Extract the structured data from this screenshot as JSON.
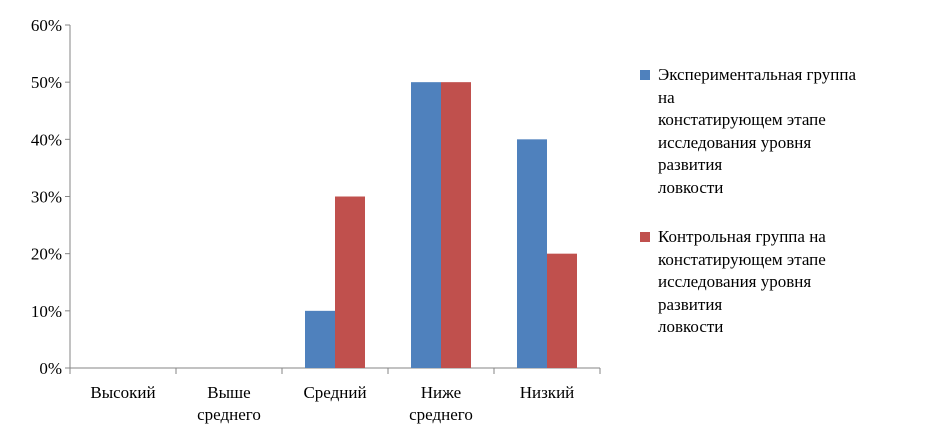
{
  "chart_data": {
    "type": "bar",
    "title": "",
    "xlabel": "",
    "ylabel": "",
    "ylim": [
      0,
      60
    ],
    "y_unit": "%",
    "y_ticks": [
      "0%",
      "10%",
      "20%",
      "30%",
      "40%",
      "50%",
      "60%"
    ],
    "grid": false,
    "legend_position": "right",
    "categories": [
      [
        "Высокий"
      ],
      [
        "Выше",
        "среднего"
      ],
      [
        "Средний"
      ],
      [
        "Ниже",
        "среднего"
      ],
      [
        "Низкий"
      ]
    ],
    "series": [
      {
        "name": "Экспериментальная группа на констатирующем этапе исследования уровня развития ловкости",
        "name_lines": [
          "Экспериментальная группа",
          "на",
          "констатирующем этапе",
          "исследования уровня",
          "развития",
          "ловкости"
        ],
        "color": "#4f81bd",
        "values": [
          0,
          0,
          10,
          50,
          40
        ]
      },
      {
        "name": "Контрольная группа на констатирующем этапе исследования уровня развития ловкости",
        "name_lines": [
          "Контрольная группа на",
          "констатирующем этапе",
          "исследования уровня",
          "развития",
          "ловкости"
        ],
        "color": "#c0504d",
        "values": [
          0,
          0,
          30,
          50,
          20
        ]
      }
    ]
  }
}
